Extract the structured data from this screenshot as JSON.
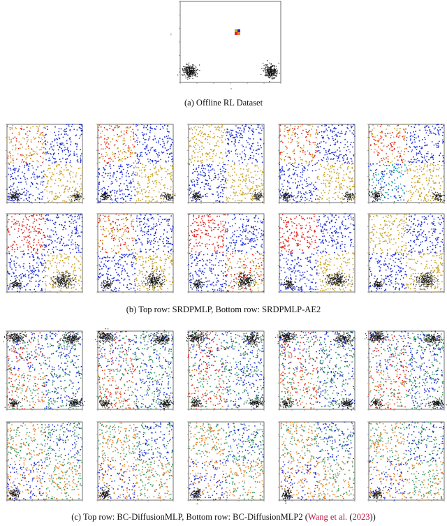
{
  "figure": {
    "captions": {
      "a": "(a)  Offline RL Dataset",
      "b": "(b)  Top row: SRDPMLP, Bottom row: SRDPMLP-AE2",
      "c_prefix": "(c)  Top row: BC-DiffusionMLP, Bottom row: BC-DiffusionMLP2 (",
      "c_cite": "Wang et al.",
      "c_mid": " (",
      "c_year": "2023",
      "c_suffix": "))"
    },
    "colors": {
      "blue": "#1f2fd6",
      "gold": "#c9a227",
      "red": "#e0261f",
      "green": "#3e9a6a",
      "orange": "#e8872a",
      "black": "#111111",
      "teal": "#23b3a3"
    },
    "dataset_plot": {
      "clusters": [
        "bottom-left",
        "bottom-right",
        "center"
      ],
      "center_marker_colors": [
        "#c9a227",
        "#1f2fd6",
        "#e0261f",
        "#e8872a"
      ]
    },
    "panels_b_top": 5,
    "panels_b_bottom": 5,
    "panels_c_top": 5,
    "panels_c_bottom": 5
  }
}
